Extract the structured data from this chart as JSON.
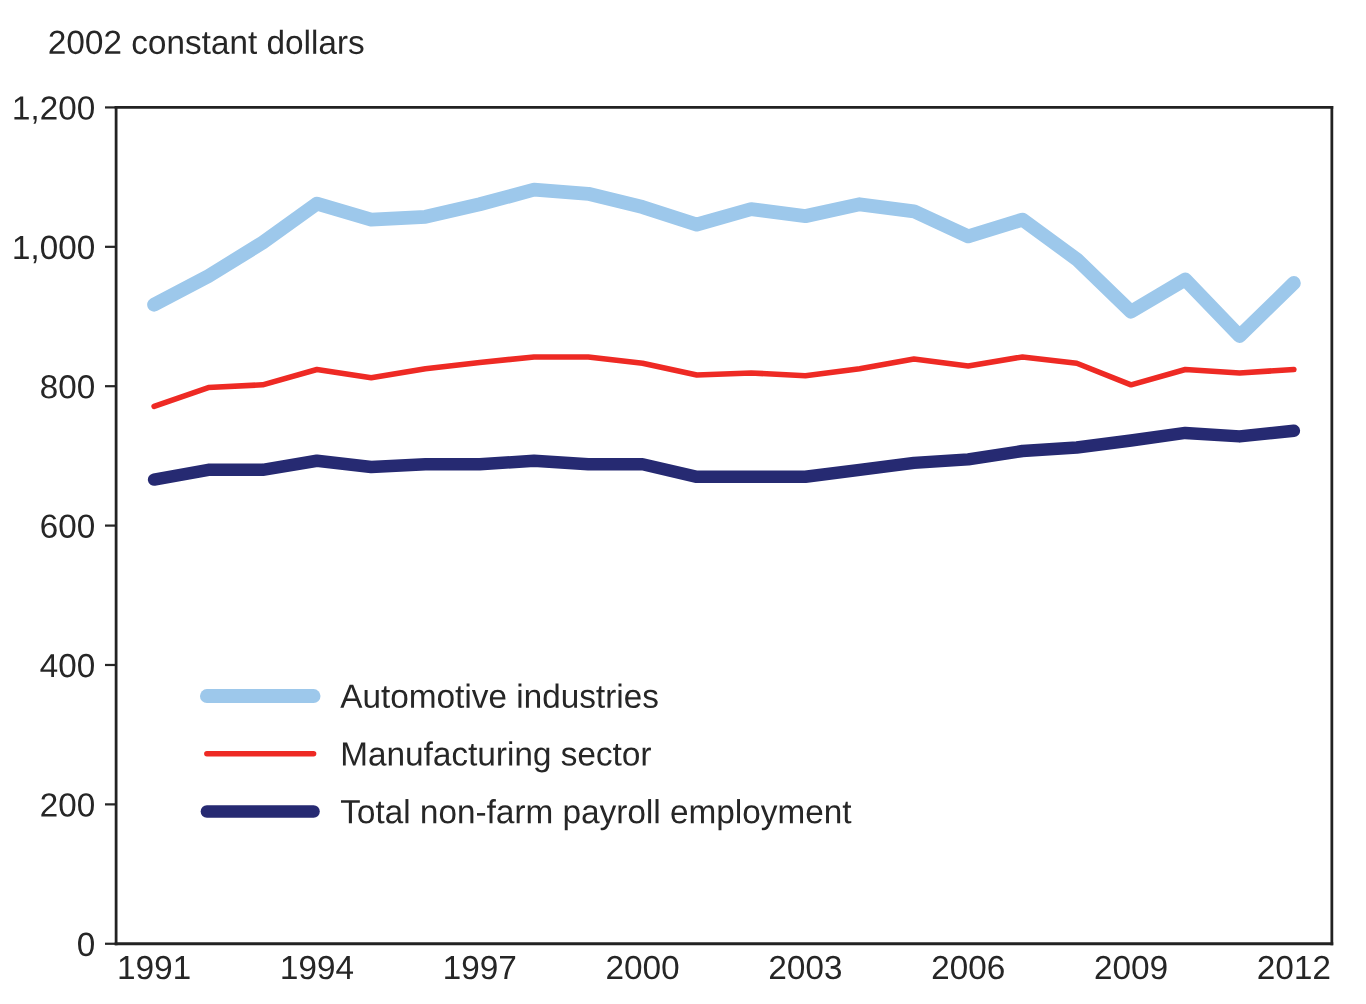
{
  "chart_data": {
    "type": "line",
    "ylabel": "2002 constant dollars",
    "categories": [
      "1991",
      null,
      null,
      "1994",
      null,
      null,
      "1997",
      null,
      null,
      "2000",
      null,
      null,
      "2003",
      null,
      null,
      "2006",
      null,
      null,
      "2009",
      null,
      null,
      "2012"
    ],
    "series": [
      {
        "name": "Automotive industries",
        "color": "#9dc8eb",
        "values": [
          917,
          958,
          1006,
          1062,
          1039,
          1043,
          1061,
          1082,
          1076,
          1057,
          1032,
          1054,
          1044,
          1061,
          1051,
          1015,
          1039,
          982,
          907,
          953,
          872,
          948
        ]
      },
      {
        "name": "Manufacturing sector",
        "color": "#ee2a24",
        "values": [
          771,
          798,
          802,
          824,
          812,
          825,
          834,
          842,
          842,
          833,
          816,
          819,
          815,
          825,
          839,
          829,
          842,
          833,
          802,
          824,
          819,
          824
        ]
      },
      {
        "name": "Total non-farm payroll employment",
        "color": "#262a72",
        "values": [
          666,
          680,
          680,
          693,
          684,
          688,
          688,
          693,
          688,
          688,
          670,
          670,
          670,
          680,
          690,
          695,
          707,
          712,
          722,
          733,
          728,
          736
        ]
      }
    ],
    "ylim": [
      0,
      1200
    ],
    "yticks": [
      0,
      200,
      400,
      600,
      800,
      {
        "value": 1000,
        "label": "1,000"
      },
      {
        "value": 1200,
        "label": "1,200"
      }
    ],
    "grid": false,
    "legend": "bottom left",
    "line_style": "solid"
  }
}
